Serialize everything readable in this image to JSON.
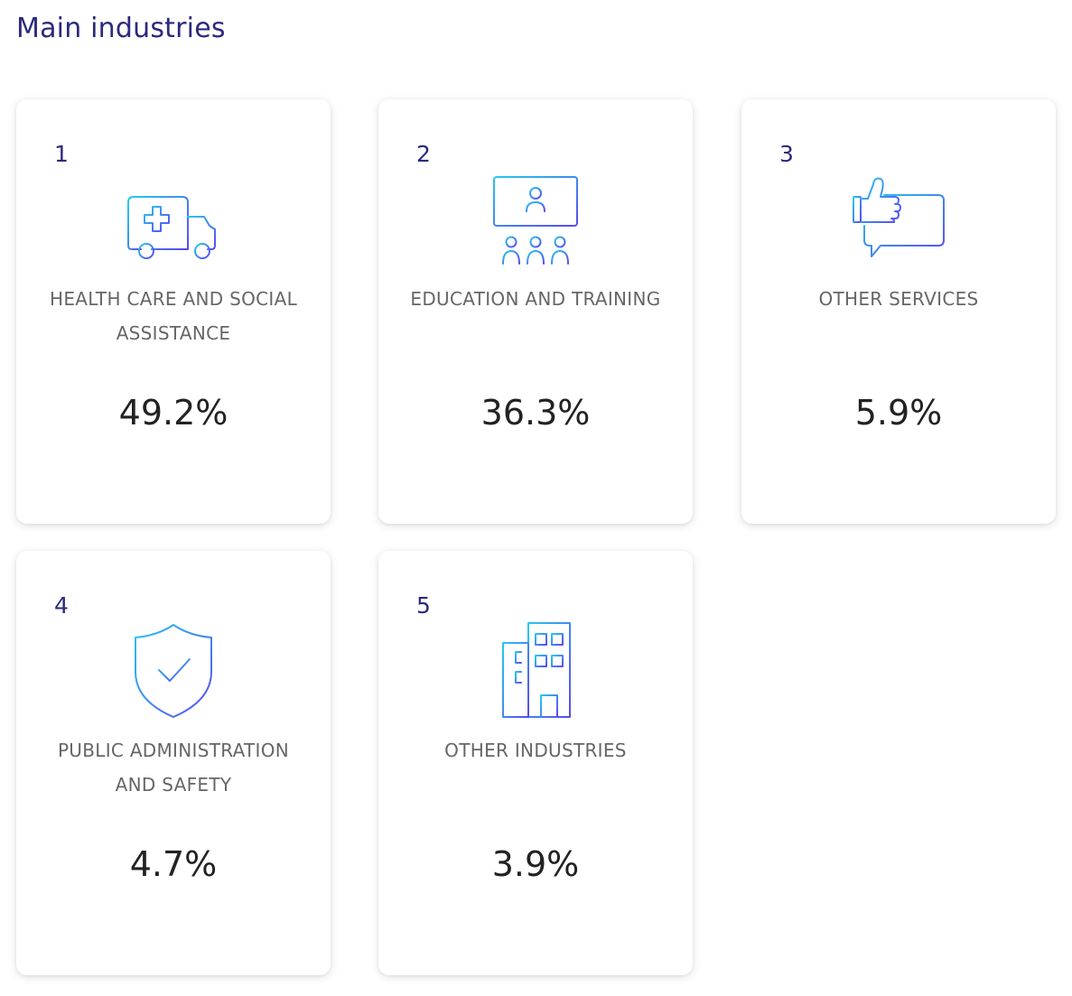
{
  "section": {
    "title": "Main industries"
  },
  "industries": [
    {
      "rank": "1",
      "label": "HEALTH CARE AND SOCIAL ASSISTANCE",
      "value": "49.2%",
      "icon": "ambulance-icon"
    },
    {
      "rank": "2",
      "label": "EDUCATION AND TRAINING",
      "value": "36.3%",
      "icon": "classroom-icon"
    },
    {
      "rank": "3",
      "label": "OTHER SERVICES",
      "value": "5.9%",
      "icon": "thumbs-up-chat-icon"
    },
    {
      "rank": "4",
      "label": "PUBLIC ADMINISTRATION AND SAFETY",
      "value": "4.7%",
      "icon": "shield-check-icon"
    },
    {
      "rank": "5",
      "label": "OTHER INDUSTRIES",
      "value": "3.9%",
      "icon": "building-icon"
    }
  ],
  "colors": {
    "title": "#2a2a7e",
    "rank": "#2a2a7e",
    "label": "#666666",
    "value": "#222222",
    "icon_gradient_start": "#28c8f0",
    "icon_gradient_end": "#5a4af0"
  }
}
